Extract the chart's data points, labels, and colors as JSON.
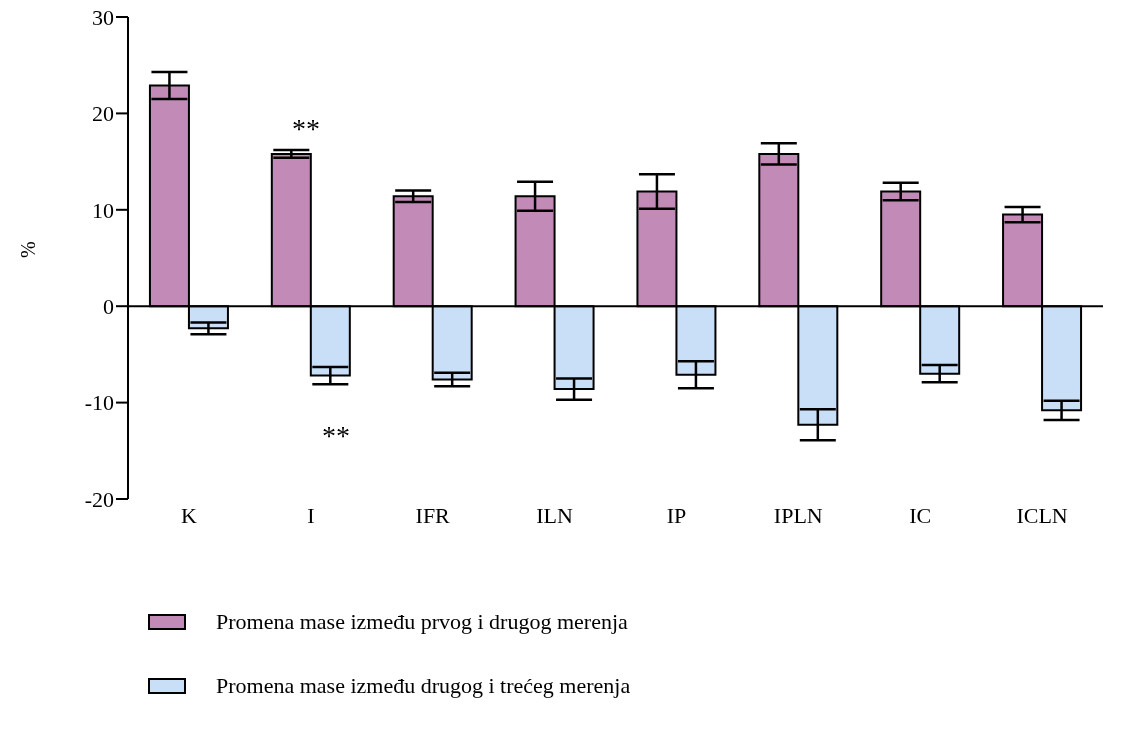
{
  "chart_data": {
    "type": "bar",
    "ylabel": "%",
    "categories": [
      "K",
      "I",
      "IFR",
      "ILN",
      "IP",
      "IPLN",
      "IC",
      "ICLN"
    ],
    "series": [
      {
        "name": "Promena mase između prvog i drugog merenja",
        "color": "#c28bb7",
        "values": [
          22.9,
          15.8,
          11.4,
          11.4,
          11.9,
          15.8,
          11.9,
          9.5
        ],
        "errors": [
          1.4,
          0.4,
          0.6,
          1.5,
          1.8,
          1.1,
          0.9,
          0.8
        ]
      },
      {
        "name": "Promena mase između drugog i trećeg merenja",
        "color": "#c9dff7",
        "values": [
          -2.3,
          -7.2,
          -7.6,
          -8.6,
          -7.1,
          -12.3,
          -7.0,
          -10.8
        ],
        "errors": [
          0.6,
          0.9,
          0.7,
          1.1,
          1.4,
          1.6,
          0.9,
          1.0
        ]
      }
    ],
    "ylim": [
      -20,
      30
    ],
    "yticks": [
      -20,
      -10,
      0,
      10,
      20,
      30
    ],
    "grid": false,
    "legend": "bottom",
    "ref_lines": [
      {
        "axis": "y",
        "value": 0,
        "color": "#000000"
      }
    ],
    "annotations": [
      "**",
      "**"
    ]
  }
}
